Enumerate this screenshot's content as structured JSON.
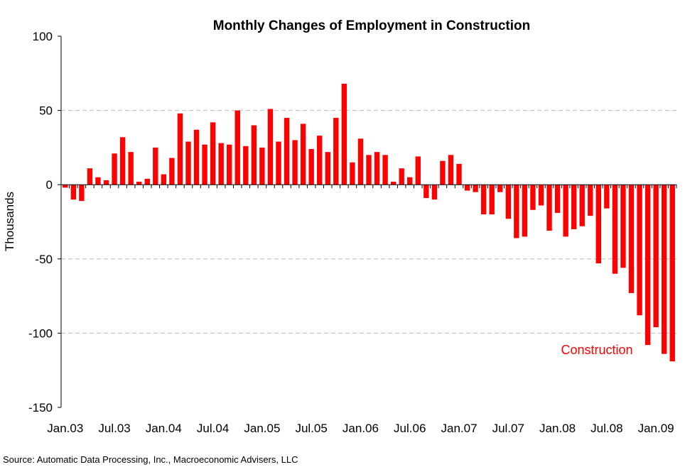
{
  "chart_data": {
    "type": "bar",
    "title": "Monthly Changes of Employment in Construction",
    "ylabel": "Thousands",
    "xlabel": "",
    "ylim": [
      -150,
      100
    ],
    "y_ticks": [
      "100",
      "50",
      "0",
      "-50",
      "-100",
      "-150"
    ],
    "grid": "horizontal dashed",
    "x_tick_labels": [
      "Jan.03",
      "Jul.03",
      "Jan.04",
      "Jul.04",
      "Jan.05",
      "Jul.05",
      "Jan.06",
      "Jul.06",
      "Jan.07",
      "Jul.07",
      "Jan.08",
      "Jul.08",
      "Jan.09"
    ],
    "series": [
      {
        "name": "Construction",
        "color": "#ff0000",
        "start": "Jan.03",
        "values": [
          -2,
          -10,
          -11,
          11,
          5,
          3,
          21,
          32,
          22,
          2,
          4,
          25,
          7,
          18,
          48,
          29,
          37,
          27,
          42,
          28,
          27,
          50,
          26,
          40,
          25,
          51,
          29,
          45,
          30,
          41,
          24,
          33,
          22,
          45,
          68,
          15,
          31,
          20,
          22,
          20,
          2,
          11,
          5,
          19,
          -9,
          -10,
          16,
          20,
          14,
          -4,
          -5,
          -20,
          -20,
          -5,
          -23,
          -36,
          -35,
          -17,
          -14,
          -31,
          -19,
          -35,
          -30,
          -28,
          -21,
          -53,
          -16,
          -60,
          -56,
          -73,
          -88,
          -108,
          -96,
          -114,
          -119
        ]
      }
    ]
  },
  "source": "Source: Automatic Data Processing, Inc., Macroeconomic Advisers, LLC"
}
